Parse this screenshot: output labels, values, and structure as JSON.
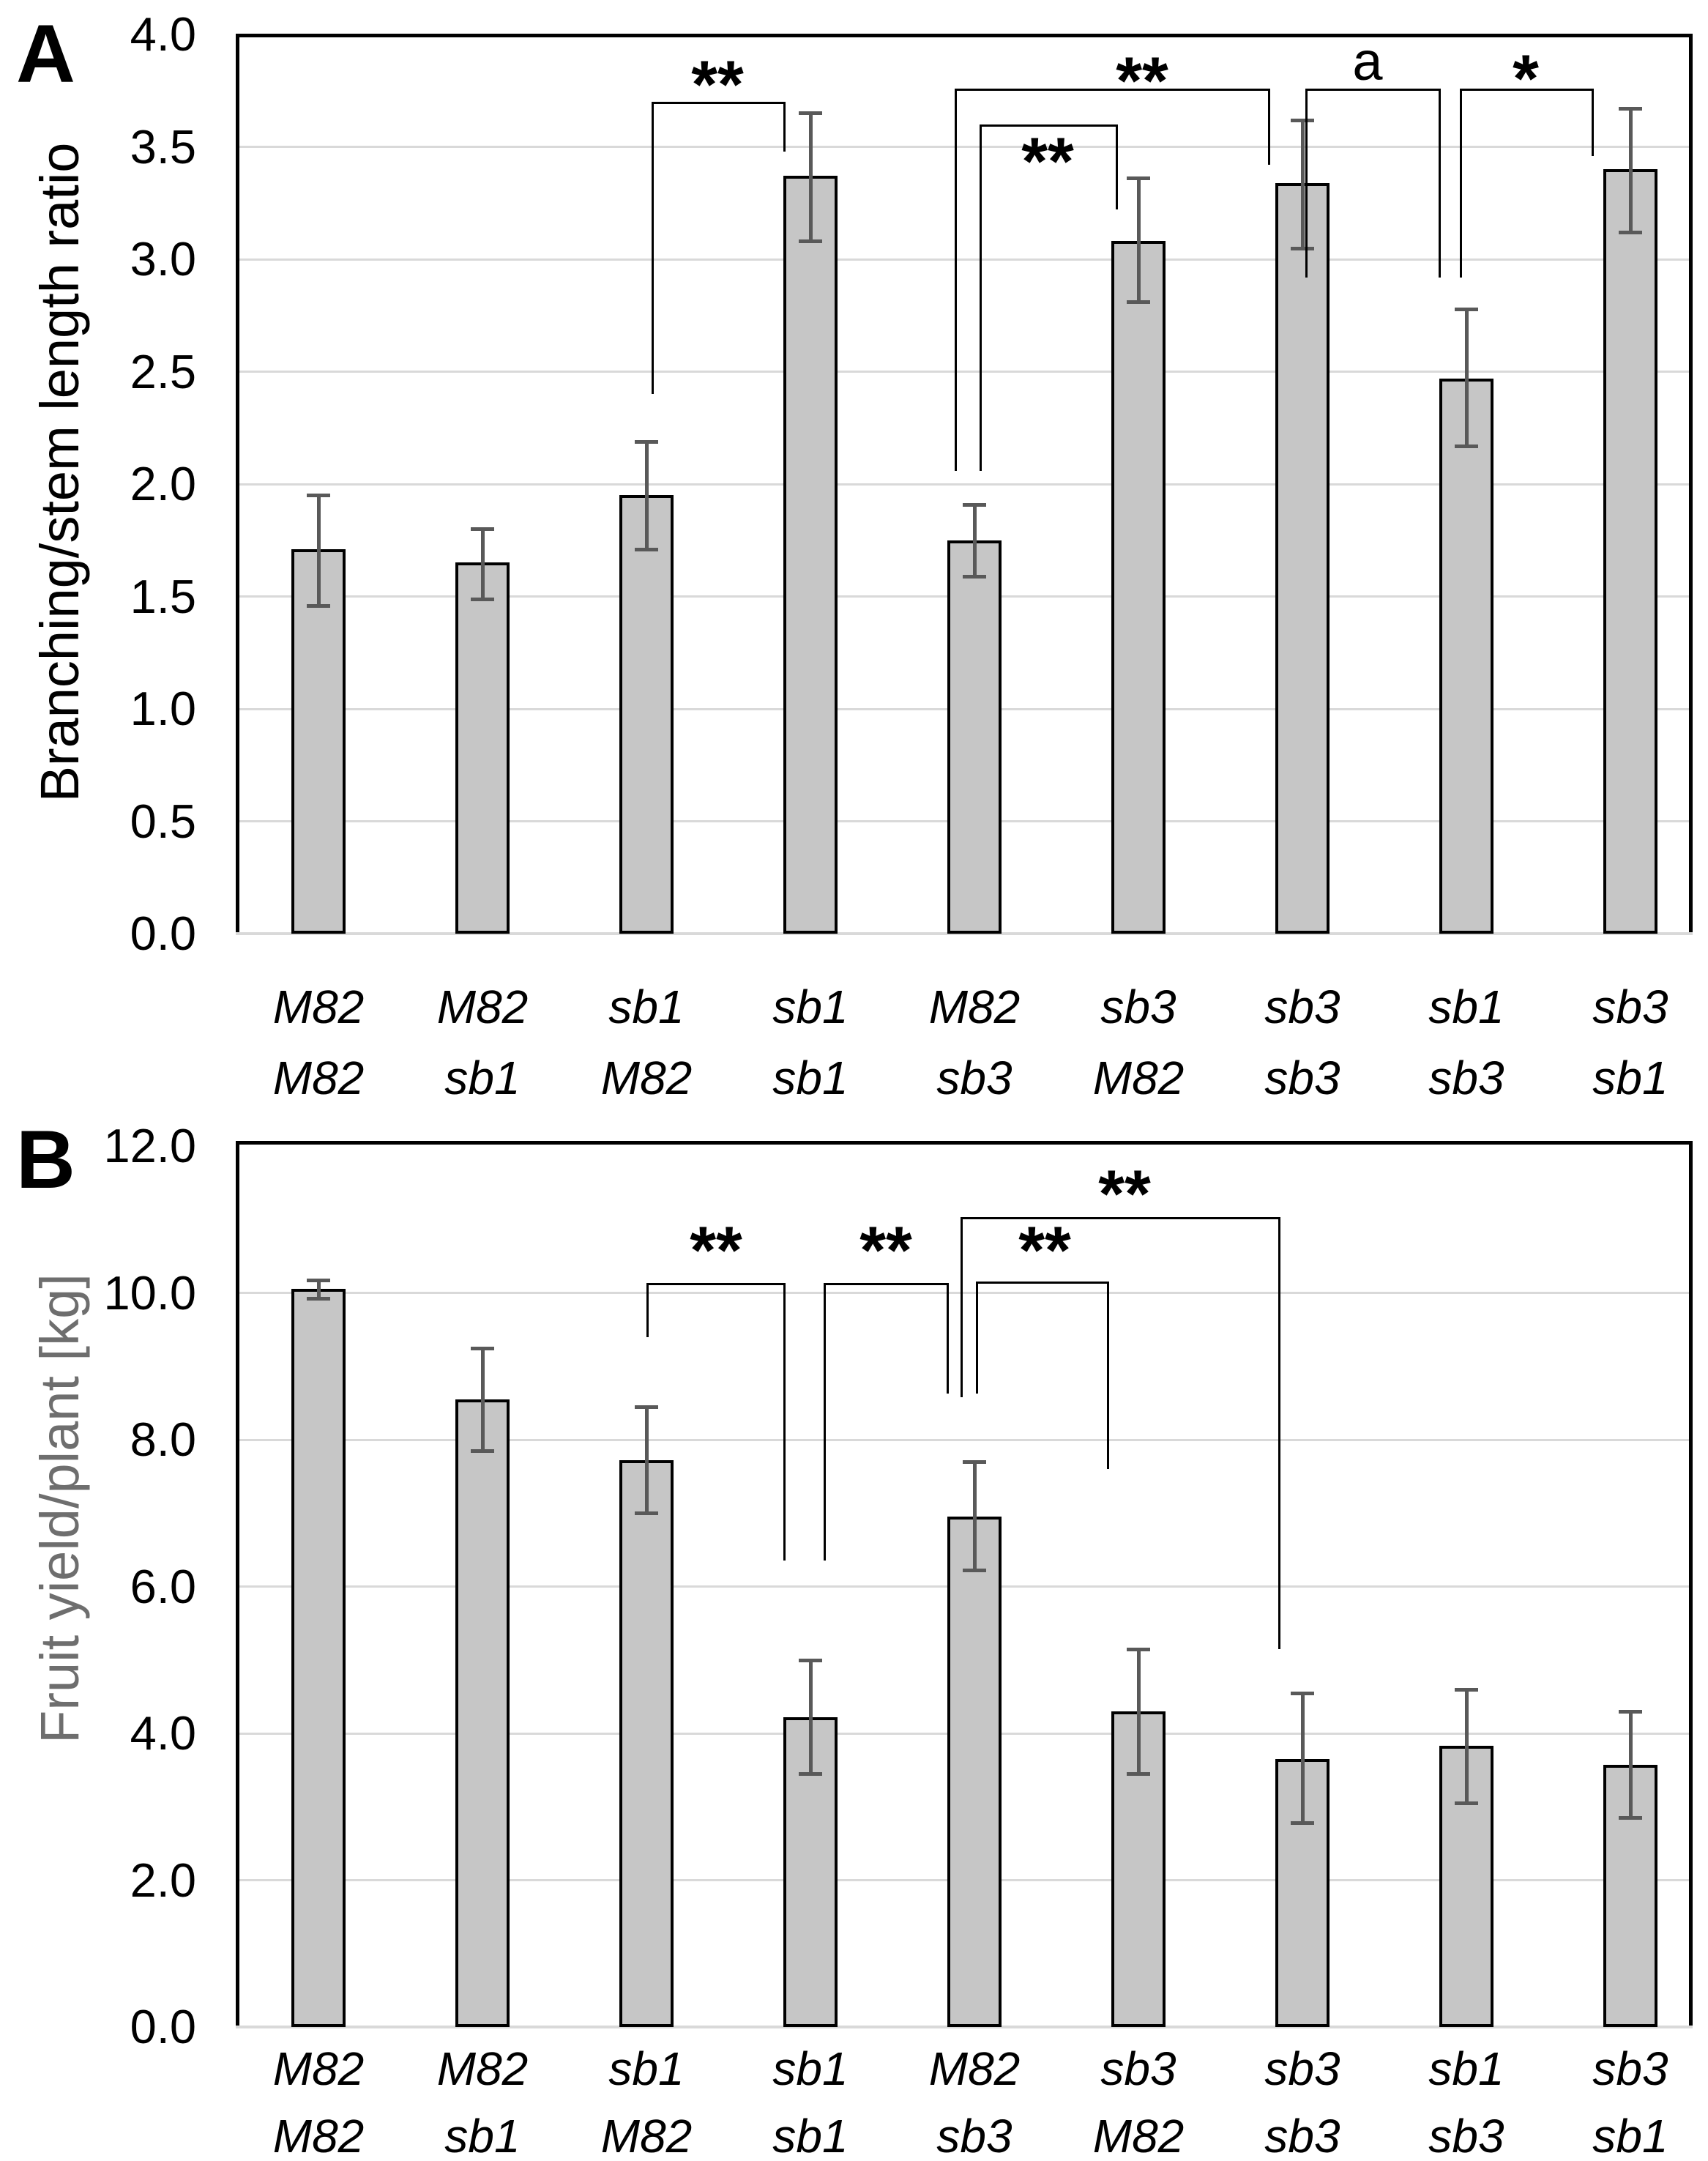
{
  "figure_type": "two-panel grafting experiment bar figure",
  "colors": {
    "bar_fill": "#c6c6c6",
    "bar_border": "#000000",
    "error_bar": "#595959",
    "gridline": "#d9d9d9",
    "baseline": "#d9d9d9",
    "frame": "#000000",
    "panel_a_title": "#000000",
    "panel_b_title": "#6e6e6e"
  },
  "chart_data": [
    {
      "type": "bar",
      "panel_letter": "A",
      "title": "",
      "xlabel": "",
      "ylabel": "Branching/stem length ratio",
      "ylim": [
        0.0,
        4.0
      ],
      "grid": true,
      "legend": false,
      "ytick_values": [
        0.0,
        0.5,
        1.0,
        1.5,
        2.0,
        2.5,
        3.0,
        3.5,
        4.0
      ],
      "ytick_labels": [
        "0.0",
        "0.5",
        "1.0",
        "1.5",
        "2.0",
        "2.5",
        "3.0",
        "3.5",
        "4.0"
      ],
      "categories": [
        [
          "M82",
          "M82"
        ],
        [
          "M82",
          "sb1"
        ],
        [
          "sb1",
          "M82"
        ],
        [
          "sb1",
          "sb1"
        ],
        [
          "M82",
          "sb3"
        ],
        [
          "sb3",
          "M82"
        ],
        [
          "sb3",
          "sb3"
        ],
        [
          "sb1",
          "sb3"
        ],
        [
          "sb3",
          "sb1"
        ]
      ],
      "values": [
        1.71,
        1.65,
        1.95,
        3.37,
        1.75,
        3.08,
        3.34,
        2.47,
        3.4
      ],
      "error_low": [
        1.46,
        1.49,
        1.71,
        3.08,
        1.59,
        2.81,
        3.05,
        2.17,
        3.12
      ],
      "error_high": [
        1.95,
        1.8,
        2.19,
        3.65,
        1.91,
        3.36,
        3.62,
        2.78,
        3.67
      ],
      "significance": [
        {
          "bars": [
            2,
            3
          ],
          "label": "**",
          "x1": 890,
          "x2": 1070,
          "line_y": 3.7,
          "leg1_y": 2.4,
          "leg2_y": 3.48,
          "label_cx": 980,
          "label_cy": 100
        },
        {
          "bars": [
            4,
            5
          ],
          "label": "**",
          "x1": 1338,
          "x2": 1524,
          "line_y": 3.6,
          "leg1_y": 2.06,
          "leg2_y": 3.22,
          "label_cx": 1431,
          "label_cy": 205
        },
        {
          "bars": [
            4,
            6
          ],
          "label": "**",
          "x1": 1304,
          "x2": 1732,
          "line_y": 3.76,
          "leg1_y": 2.06,
          "leg2_y": 3.42,
          "label_cx": 1560,
          "label_cy": 95
        },
        {
          "bars": [
            6,
            7
          ],
          "label": "a",
          "x1": 1783,
          "x2": 1965,
          "line_y": 3.76,
          "leg1_y": 2.92,
          "leg2_y": 2.92,
          "label_cx": 1868,
          "label_cy": 85
        },
        {
          "bars": [
            7,
            8
          ],
          "label": "*",
          "x1": 1994,
          "x2": 2174,
          "line_y": 3.76,
          "leg1_y": 2.92,
          "leg2_y": 3.46,
          "label_cx": 2084,
          "label_cy": 92
        }
      ]
    },
    {
      "type": "bar",
      "panel_letter": "B",
      "title": "",
      "xlabel": "",
      "ylabel": "Fruit yield/plant [kg]",
      "ylim": [
        0.0,
        12.0
      ],
      "grid": true,
      "legend": false,
      "ytick_values": [
        0.0,
        2.0,
        4.0,
        6.0,
        8.0,
        10.0,
        12.0
      ],
      "ytick_labels": [
        "0.0",
        "2.0",
        "4.0",
        "6.0",
        "8.0",
        "10.0",
        "12.0"
      ],
      "categories": [
        [
          "M82",
          "M82"
        ],
        [
          "M82",
          "sb1"
        ],
        [
          "sb1",
          "M82"
        ],
        [
          "sb1",
          "sb1"
        ],
        [
          "M82",
          "sb3"
        ],
        [
          "sb3",
          "M82"
        ],
        [
          "sb3",
          "sb3"
        ],
        [
          "sb1",
          "sb3"
        ],
        [
          "sb3",
          "sb1"
        ]
      ],
      "values": [
        10.05,
        8.55,
        7.72,
        4.22,
        6.95,
        4.3,
        3.65,
        3.83,
        3.57
      ],
      "error_low": [
        9.93,
        7.85,
        7.0,
        3.45,
        6.22,
        3.45,
        2.78,
        3.05,
        2.85
      ],
      "error_high": [
        10.17,
        9.25,
        8.45,
        5.0,
        7.7,
        5.15,
        4.55,
        4.6,
        4.3
      ],
      "significance": [
        {
          "bars": [
            2,
            3
          ],
          "label": "**",
          "x1": 883,
          "x2": 1070,
          "line_y": 10.13,
          "leg1_y": 9.4,
          "leg2_y": 6.35,
          "label_cx": 978,
          "label_cy": 1692
        },
        {
          "bars": [
            3,
            4
          ],
          "label": "**",
          "x1": 1125,
          "x2": 1293,
          "line_y": 10.13,
          "leg1_y": 6.35,
          "leg2_y": 8.63,
          "label_cx": 1210,
          "label_cy": 1692
        },
        {
          "bars": [
            4,
            5
          ],
          "label": "**",
          "x1": 1333,
          "x2": 1512,
          "line_y": 10.15,
          "leg1_y": 8.63,
          "leg2_y": 7.6,
          "label_cx": 1427,
          "label_cy": 1692
        },
        {
          "bars": [
            4,
            6
          ],
          "label": "**",
          "x1": 1312,
          "x2": 1746,
          "line_y": 11.03,
          "leg1_y": 8.58,
          "leg2_y": 5.15,
          "label_cx": 1536,
          "label_cy": 1615
        }
      ]
    }
  ]
}
